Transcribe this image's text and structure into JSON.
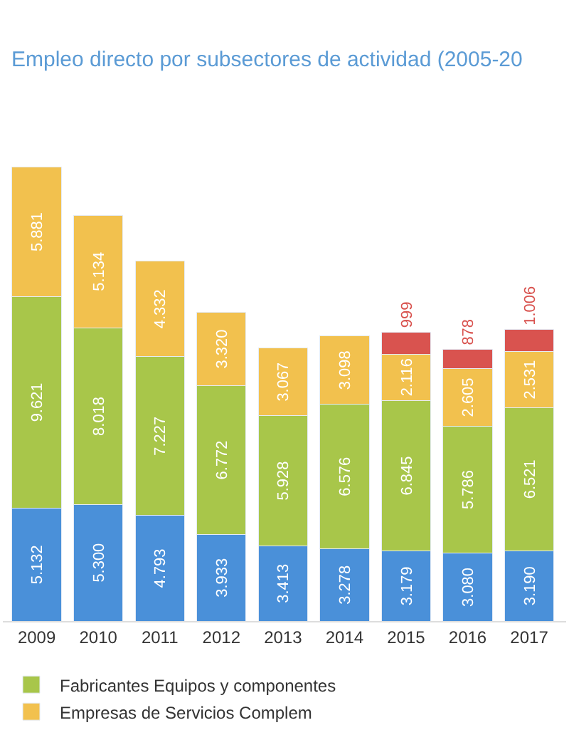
{
  "chart_data": {
    "type": "bar",
    "stacked": true,
    "title": "Empleo directo por subsectores de actividad (2005-20",
    "categories": [
      "2009",
      "2010",
      "2011",
      "2012",
      "2013",
      "2014",
      "2015",
      "2016",
      "2017"
    ],
    "series": [
      {
        "color": "#4a90d9",
        "values": [
          5132,
          5300,
          4793,
          3933,
          3413,
          3278,
          3179,
          3080,
          3190
        ],
        "value_labels": [
          "5.132",
          "5.300",
          "4.793",
          "3.933",
          "3.413",
          "3.278",
          "3.179",
          "3.080",
          "3.190"
        ]
      },
      {
        "name": "Fabricantes Equipos y componentes",
        "color": "#a8c64a",
        "values": [
          9621,
          8018,
          7227,
          6772,
          5928,
          6576,
          6845,
          5786,
          6521
        ],
        "value_labels": [
          "9.621",
          "8.018",
          "7.227",
          "6.772",
          "5.928",
          "6.576",
          "6.845",
          "5.786",
          "6.521"
        ]
      },
      {
        "name": "Empresas de Servicios Complem",
        "color": "#f2c14e",
        "values": [
          5881,
          5134,
          4332,
          3320,
          3067,
          3098,
          2116,
          2605,
          2531
        ],
        "value_labels": [
          "5.881",
          "5.134",
          "4.332",
          "3.320",
          "3.067",
          "3.098",
          "2.116",
          "2.605",
          "2.531"
        ]
      },
      {
        "color": "#d9534f",
        "values": [
          null,
          null,
          null,
          null,
          null,
          null,
          999,
          878,
          1006
        ],
        "value_labels": [
          null,
          null,
          null,
          null,
          null,
          null,
          "999",
          "878",
          "1.006"
        ]
      }
    ],
    "legend": "bottom"
  }
}
